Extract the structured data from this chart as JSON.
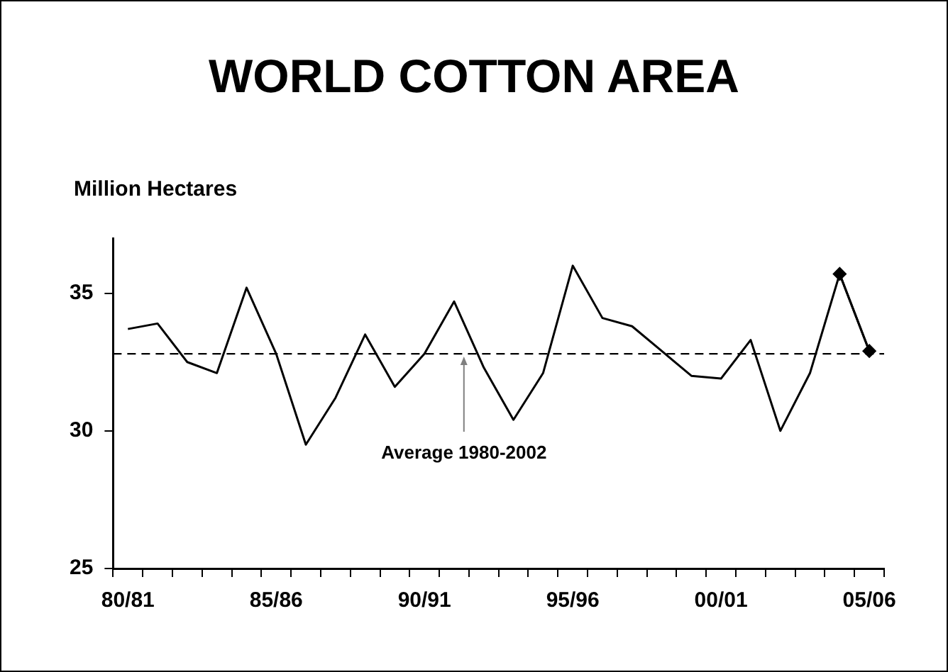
{
  "chart_data": {
    "type": "line",
    "title": "WORLD COTTON AREA",
    "ylabel": "Million Hectares",
    "categories": [
      "80/81",
      null,
      null,
      null,
      null,
      "85/86",
      null,
      null,
      null,
      null,
      "90/91",
      null,
      null,
      null,
      null,
      "95/96",
      null,
      null,
      null,
      null,
      "00/01",
      null,
      null,
      null,
      null,
      "05/06"
    ],
    "series": [
      {
        "color": "#000000",
        "marker": "none",
        "values": [
          33.7,
          33.9,
          32.5,
          32.1,
          35.2,
          32.8,
          29.5,
          31.2,
          33.5,
          31.6,
          32.8,
          34.7,
          32.3,
          30.4,
          32.1,
          36.0,
          34.1,
          33.8,
          32.9,
          32.0,
          31.9,
          33.3,
          30.0,
          32.1,
          35.7,
          32.9
        ]
      },
      {
        "color": "#000000",
        "marker": "diamond",
        "values": [
          null,
          null,
          null,
          null,
          null,
          null,
          null,
          null,
          null,
          null,
          null,
          null,
          null,
          null,
          null,
          null,
          null,
          null,
          null,
          null,
          null,
          null,
          null,
          null,
          35.7,
          32.9
        ]
      }
    ],
    "ylim": [
      25,
      37
    ],
    "yticks": [
      25,
      30,
      35
    ],
    "grid": false,
    "legend": false,
    "ref_lines": [
      {
        "axis": "y",
        "value": 32.8,
        "label": "Average 1980-2002",
        "line_style": "dashed",
        "color": "#000000"
      }
    ]
  }
}
